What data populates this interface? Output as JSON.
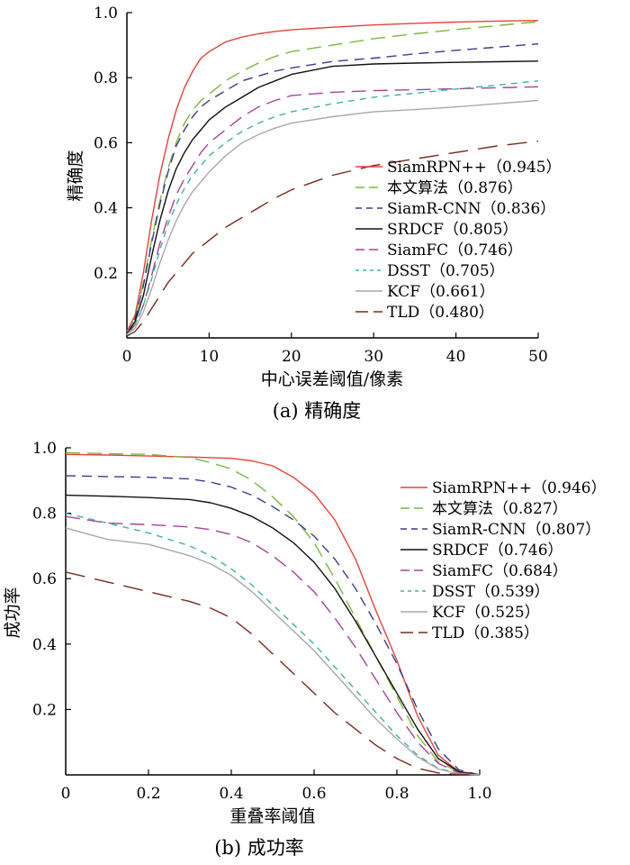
{
  "chart_data": [
    {
      "type": "line",
      "caption": "(a) 精确度",
      "xlabel": "中心误差阈值/像素",
      "ylabel": "精确度",
      "xlim": [
        0,
        50
      ],
      "ylim": [
        0,
        1.0
      ],
      "x_ticks": [
        0,
        10,
        20,
        30,
        40,
        50
      ],
      "y_ticks": [
        "0.2",
        "0.4",
        "0.6",
        "0.8",
        "1.0"
      ],
      "legend_position": "lower-right",
      "grid": false,
      "series": [
        {
          "name": "SiamRPN++",
          "score": "（0.945）",
          "color": "#e8413a",
          "dash": "solid",
          "x": [
            0,
            1,
            2,
            3,
            4,
            5,
            6,
            7,
            8,
            9,
            10,
            12,
            14,
            16,
            18,
            20,
            25,
            30,
            35,
            40,
            45,
            50
          ],
          "y": [
            0.02,
            0.07,
            0.2,
            0.36,
            0.5,
            0.61,
            0.7,
            0.77,
            0.82,
            0.86,
            0.88,
            0.91,
            0.925,
            0.935,
            0.942,
            0.947,
            0.955,
            0.962,
            0.967,
            0.971,
            0.974,
            0.976
          ]
        },
        {
          "name": "本文算法",
          "score": "（0.876）",
          "color": "#7bb83a",
          "dash": "long",
          "x": [
            0,
            1,
            2,
            3,
            4,
            5,
            6,
            7,
            8,
            9,
            10,
            12,
            14,
            16,
            18,
            20,
            25,
            30,
            35,
            40,
            45,
            50
          ],
          "y": [
            0.01,
            0.06,
            0.17,
            0.3,
            0.42,
            0.52,
            0.6,
            0.66,
            0.7,
            0.73,
            0.75,
            0.79,
            0.82,
            0.845,
            0.865,
            0.88,
            0.9,
            0.92,
            0.935,
            0.948,
            0.96,
            0.972
          ]
        },
        {
          "name": "SiamR-CNN",
          "score": "（0.836）",
          "color": "#3c3c8c",
          "dash": "medium",
          "x": [
            0,
            1,
            2,
            3,
            4,
            5,
            6,
            7,
            8,
            9,
            10,
            12,
            14,
            16,
            18,
            20,
            25,
            30,
            35,
            40,
            45,
            50
          ],
          "y": [
            0.01,
            0.06,
            0.16,
            0.29,
            0.41,
            0.51,
            0.59,
            0.64,
            0.68,
            0.71,
            0.73,
            0.76,
            0.79,
            0.805,
            0.82,
            0.83,
            0.85,
            0.86,
            0.873,
            0.884,
            0.894,
            0.904
          ]
        },
        {
          "name": "SRDCF",
          "score": "（0.805）",
          "color": "#111111",
          "dash": "solid",
          "x": [
            0,
            1,
            2,
            3,
            4,
            5,
            6,
            7,
            8,
            9,
            10,
            12,
            14,
            16,
            18,
            20,
            25,
            30,
            35,
            40,
            45,
            50
          ],
          "y": [
            0.01,
            0.05,
            0.13,
            0.25,
            0.36,
            0.45,
            0.52,
            0.57,
            0.61,
            0.64,
            0.67,
            0.71,
            0.74,
            0.77,
            0.79,
            0.81,
            0.835,
            0.842,
            0.845,
            0.847,
            0.849,
            0.851
          ]
        },
        {
          "name": "SiamFC",
          "score": "（0.746）",
          "color": "#a6449a",
          "dash": "long",
          "x": [
            0,
            1,
            2,
            3,
            4,
            5,
            6,
            7,
            8,
            9,
            10,
            12,
            14,
            16,
            18,
            20,
            25,
            30,
            35,
            40,
            45,
            50
          ],
          "y": [
            0.01,
            0.04,
            0.1,
            0.19,
            0.29,
            0.37,
            0.44,
            0.49,
            0.53,
            0.57,
            0.6,
            0.64,
            0.68,
            0.71,
            0.73,
            0.745,
            0.755,
            0.76,
            0.763,
            0.766,
            0.769,
            0.772
          ]
        },
        {
          "name": "DSST",
          "score": "（0.705）",
          "color": "#3fb3a2",
          "dash": "short",
          "x": [
            0,
            1,
            2,
            3,
            4,
            5,
            6,
            7,
            8,
            9,
            10,
            12,
            14,
            16,
            18,
            20,
            25,
            30,
            35,
            40,
            45,
            50
          ],
          "y": [
            0.01,
            0.04,
            0.1,
            0.18,
            0.27,
            0.35,
            0.41,
            0.46,
            0.5,
            0.53,
            0.56,
            0.6,
            0.635,
            0.66,
            0.68,
            0.695,
            0.72,
            0.74,
            0.752,
            0.765,
            0.777,
            0.79
          ]
        },
        {
          "name": "KCF",
          "score": "（0.661）",
          "color": "#a9a9a9",
          "dash": "solid",
          "x": [
            0,
            1,
            2,
            3,
            4,
            5,
            6,
            7,
            8,
            9,
            10,
            12,
            14,
            16,
            18,
            20,
            25,
            30,
            35,
            40,
            45,
            50
          ],
          "y": [
            0.01,
            0.03,
            0.08,
            0.15,
            0.23,
            0.3,
            0.36,
            0.41,
            0.45,
            0.48,
            0.51,
            0.56,
            0.6,
            0.625,
            0.645,
            0.66,
            0.68,
            0.695,
            0.702,
            0.71,
            0.72,
            0.73
          ]
        },
        {
          "name": "TLD",
          "score": "（0.480）",
          "color": "#7a2a1e",
          "dash": "xlong",
          "x": [
            0,
            1,
            2,
            3,
            4,
            5,
            6,
            7,
            8,
            9,
            10,
            12,
            14,
            16,
            18,
            20,
            25,
            30,
            35,
            40,
            45,
            50
          ],
          "y": [
            0.005,
            0.02,
            0.05,
            0.09,
            0.13,
            0.17,
            0.2,
            0.23,
            0.26,
            0.28,
            0.3,
            0.34,
            0.37,
            0.4,
            0.43,
            0.455,
            0.5,
            0.53,
            0.55,
            0.57,
            0.59,
            0.605
          ]
        }
      ]
    },
    {
      "type": "line",
      "caption": "(b) 成功率",
      "xlabel": "重叠率阈值",
      "ylabel": "成功率",
      "xlim": [
        0,
        1.0
      ],
      "ylim": [
        0,
        1.0
      ],
      "x_ticks": [
        "0",
        "0.2",
        "0.4",
        "0.6",
        "0.8",
        "1.0"
      ],
      "y_ticks": [
        "0.2",
        "0.4",
        "0.6",
        "0.8",
        "1.0"
      ],
      "legend_position": "upper-right",
      "grid": false,
      "series": [
        {
          "name": "SiamRPN++",
          "score": "（0.946）",
          "color": "#e8413a",
          "dash": "solid",
          "x": [
            0,
            0.1,
            0.2,
            0.3,
            0.4,
            0.45,
            0.5,
            0.55,
            0.6,
            0.65,
            0.7,
            0.75,
            0.8,
            0.85,
            0.9,
            0.95,
            1.0
          ],
          "y": [
            0.98,
            0.978,
            0.975,
            0.972,
            0.968,
            0.96,
            0.945,
            0.91,
            0.86,
            0.78,
            0.66,
            0.5,
            0.35,
            0.18,
            0.06,
            0.01,
            0.0
          ]
        },
        {
          "name": "本文算法",
          "score": "（0.827）",
          "color": "#7bb83a",
          "dash": "long",
          "x": [
            0,
            0.1,
            0.2,
            0.3,
            0.35,
            0.4,
            0.45,
            0.5,
            0.55,
            0.6,
            0.65,
            0.7,
            0.75,
            0.8,
            0.85,
            0.9,
            0.95,
            1.0
          ],
          "y": [
            0.985,
            0.982,
            0.98,
            0.97,
            0.955,
            0.935,
            0.9,
            0.85,
            0.79,
            0.71,
            0.6,
            0.48,
            0.36,
            0.24,
            0.12,
            0.04,
            0.008,
            0.0
          ]
        },
        {
          "name": "SiamR-CNN",
          "score": "（0.807）",
          "color": "#3c3c8c",
          "dash": "medium",
          "x": [
            0,
            0.1,
            0.2,
            0.3,
            0.35,
            0.4,
            0.45,
            0.5,
            0.55,
            0.6,
            0.65,
            0.7,
            0.75,
            0.8,
            0.85,
            0.9,
            0.95,
            1.0
          ],
          "y": [
            0.915,
            0.912,
            0.91,
            0.905,
            0.895,
            0.88,
            0.855,
            0.82,
            0.78,
            0.73,
            0.66,
            0.57,
            0.46,
            0.34,
            0.2,
            0.08,
            0.015,
            0.0
          ]
        },
        {
          "name": "SRDCF",
          "score": "（0.746）",
          "color": "#111111",
          "dash": "solid",
          "x": [
            0,
            0.1,
            0.2,
            0.3,
            0.35,
            0.4,
            0.45,
            0.5,
            0.55,
            0.6,
            0.65,
            0.7,
            0.75,
            0.8,
            0.85,
            0.9,
            0.95,
            1.0
          ],
          "y": [
            0.855,
            0.852,
            0.848,
            0.842,
            0.832,
            0.815,
            0.79,
            0.755,
            0.71,
            0.65,
            0.57,
            0.47,
            0.36,
            0.25,
            0.14,
            0.05,
            0.01,
            0.0
          ]
        },
        {
          "name": "SiamFC",
          "score": "（0.684）",
          "color": "#a6449a",
          "dash": "long",
          "x": [
            0,
            0.1,
            0.2,
            0.3,
            0.35,
            0.4,
            0.45,
            0.5,
            0.55,
            0.6,
            0.65,
            0.7,
            0.75,
            0.8,
            0.85,
            0.9,
            0.95,
            1.0
          ],
          "y": [
            0.79,
            0.77,
            0.765,
            0.758,
            0.75,
            0.735,
            0.71,
            0.67,
            0.62,
            0.56,
            0.48,
            0.39,
            0.29,
            0.19,
            0.1,
            0.035,
            0.006,
            0.0
          ]
        },
        {
          "name": "DSST",
          "score": "（0.539）",
          "color": "#3fb3a2",
          "dash": "short",
          "x": [
            0,
            0.1,
            0.2,
            0.3,
            0.35,
            0.4,
            0.45,
            0.5,
            0.55,
            0.6,
            0.65,
            0.7,
            0.75,
            0.8,
            0.85,
            0.9,
            0.95,
            1.0
          ],
          "y": [
            0.8,
            0.77,
            0.74,
            0.7,
            0.67,
            0.63,
            0.58,
            0.52,
            0.46,
            0.4,
            0.33,
            0.26,
            0.19,
            0.12,
            0.06,
            0.02,
            0.004,
            0.0
          ]
        },
        {
          "name": "KCF",
          "score": "（0.525）",
          "color": "#a9a9a9",
          "dash": "solid",
          "x": [
            0,
            0.1,
            0.2,
            0.3,
            0.35,
            0.4,
            0.45,
            0.5,
            0.55,
            0.6,
            0.65,
            0.7,
            0.75,
            0.8,
            0.85,
            0.9,
            0.95,
            1.0
          ],
          "y": [
            0.755,
            0.72,
            0.705,
            0.67,
            0.645,
            0.61,
            0.56,
            0.5,
            0.44,
            0.38,
            0.31,
            0.24,
            0.17,
            0.11,
            0.055,
            0.018,
            0.003,
            0.0
          ]
        },
        {
          "name": "TLD",
          "score": "（0.385）",
          "color": "#7a2a1e",
          "dash": "xlong",
          "x": [
            0,
            0.1,
            0.2,
            0.3,
            0.35,
            0.4,
            0.45,
            0.5,
            0.55,
            0.6,
            0.65,
            0.7,
            0.75,
            0.8,
            0.85,
            0.9,
            0.95,
            1.0
          ],
          "y": [
            0.62,
            0.59,
            0.56,
            0.53,
            0.51,
            0.48,
            0.43,
            0.37,
            0.31,
            0.25,
            0.19,
            0.14,
            0.09,
            0.05,
            0.02,
            0.006,
            0.001,
            0.0
          ]
        }
      ]
    }
  ]
}
